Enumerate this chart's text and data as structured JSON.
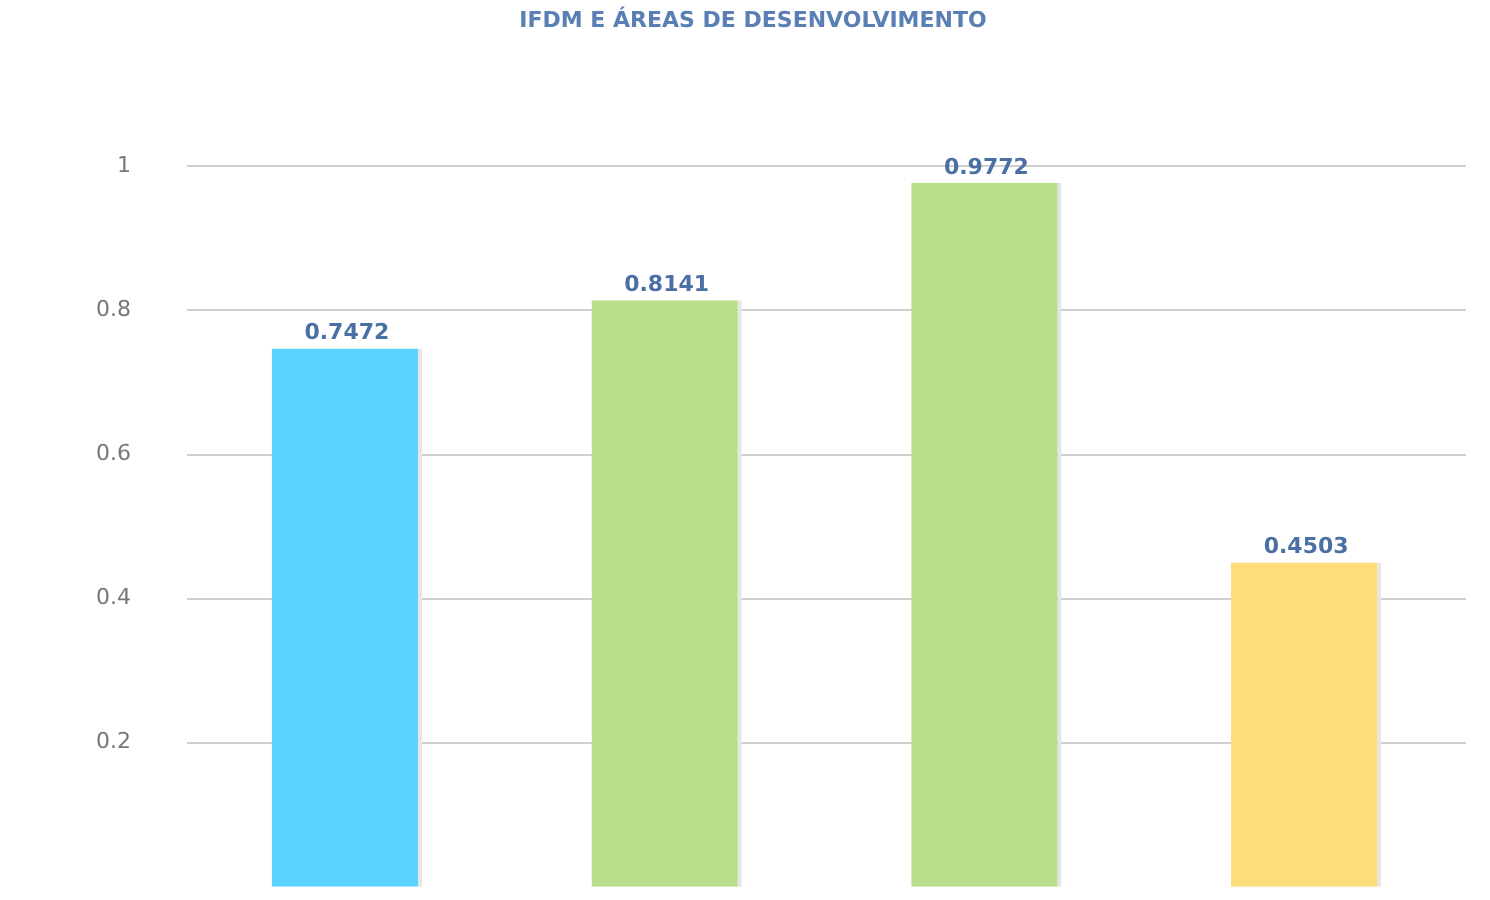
{
  "chart_data": {
    "type": "bar",
    "title": "IFDM E ÁREAS DE DESENVOLVIMENTO",
    "categories": [
      null,
      null,
      null,
      null
    ],
    "values": [
      0.7472,
      0.8141,
      0.9772,
      0.4503
    ],
    "colors": [
      "#5bd3ff",
      "#b8df8a",
      "#b8df8a",
      "#fddc7a"
    ],
    "ylim": [
      0,
      1
    ],
    "yticks": [
      0.2,
      0.4,
      0.6,
      0.8,
      1
    ],
    "grid": "y",
    "data_labels": true,
    "legend": false
  }
}
